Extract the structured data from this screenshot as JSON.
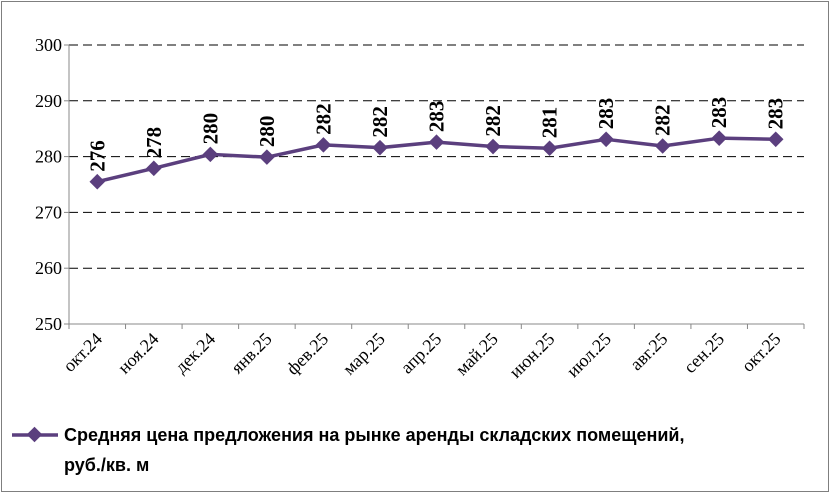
{
  "chart_data": {
    "type": "line",
    "categories": [
      "окт.24",
      "ноя.24",
      "дек.24",
      "янв.25",
      "фев.25",
      "мар.25",
      "апр.25",
      "май.25",
      "июн.25",
      "июл.25",
      "авг.25",
      "сен.25",
      "окт.25"
    ],
    "series": [
      {
        "name": "Средняя цена предложения на рынке аренды складских помещений, руб./кв. м",
        "values": [
          275.5,
          277.9,
          280.4,
          279.9,
          282.1,
          281.6,
          282.6,
          281.8,
          281.5,
          283.1,
          281.9,
          283.3,
          283.1
        ],
        "labels": [
          "276",
          "278",
          "280",
          "280",
          "282",
          "282",
          "283",
          "282",
          "281",
          "283",
          "282",
          "283",
          "283"
        ],
        "color": "#5b3f7e"
      }
    ],
    "ylim": [
      250,
      300
    ],
    "yticks": [
      "250",
      "260",
      "270",
      "280",
      "290",
      "300"
    ],
    "grid": "horizontal-dashed",
    "legend": "bottom",
    "legend_lines": [
      "Средняя цена предложения на рынке аренды складских помещений,",
      "руб./кв. м"
    ]
  }
}
